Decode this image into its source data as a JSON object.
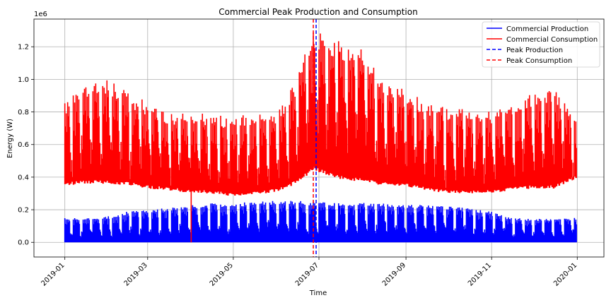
{
  "chart_data": {
    "type": "line",
    "title": "Commercial Peak Production and Consumption",
    "xlabel": "Time",
    "ylabel": "Energy (W)",
    "y_offset_label": "1e6",
    "x_range": [
      "2018-12-10",
      "2020-01-20"
    ],
    "ylim": [
      -90000,
      1370000
    ],
    "grid": true,
    "legend_placement": "top-right",
    "x_ticks": [
      {
        "date": "2019-01-01",
        "label": "2019-01"
      },
      {
        "date": "2019-03-01",
        "label": "2019-03"
      },
      {
        "date": "2019-05-01",
        "label": "2019-05"
      },
      {
        "date": "2019-07-01",
        "label": "2019-07"
      },
      {
        "date": "2019-09-01",
        "label": "2019-09"
      },
      {
        "date": "2019-11-01",
        "label": "2019-11"
      },
      {
        "date": "2020-01-01",
        "label": "2020-01"
      }
    ],
    "y_ticks": [
      {
        "value": 0,
        "label": "0.0"
      },
      {
        "value": 200000,
        "label": "0.2"
      },
      {
        "value": 400000,
        "label": "0.4"
      },
      {
        "value": 600000,
        "label": "0.6"
      },
      {
        "value": 800000,
        "label": "0.8"
      },
      {
        "value": 1000000,
        "label": "1.0"
      },
      {
        "value": 1200000,
        "label": "1.2"
      }
    ],
    "series": [
      {
        "name": "Commercial Production",
        "color": "#0000ff",
        "style": "solid",
        "dates": [
          "2019-01-01",
          "2019-01-15",
          "2019-02-01",
          "2019-02-15",
          "2019-03-01",
          "2019-03-15",
          "2019-04-01",
          "2019-04-15",
          "2019-05-01",
          "2019-05-15",
          "2019-06-01",
          "2019-06-15",
          "2019-07-01",
          "2019-07-15",
          "2019-08-01",
          "2019-08-15",
          "2019-09-01",
          "2019-09-15",
          "2019-10-01",
          "2019-10-15",
          "2019-11-01",
          "2019-11-15",
          "2019-12-01",
          "2019-12-15",
          "2019-12-31"
        ],
        "base": [
          0,
          0,
          0,
          0,
          0,
          0,
          0,
          0,
          0,
          0,
          0,
          0,
          0,
          0,
          0,
          0,
          0,
          0,
          0,
          0,
          0,
          0,
          0,
          0,
          0
        ],
        "peak": [
          150000,
          150000,
          160000,
          190000,
          200000,
          210000,
          230000,
          240000,
          240000,
          250000,
          255000,
          255000,
          250000,
          245000,
          245000,
          240000,
          235000,
          230000,
          220000,
          210000,
          190000,
          150000,
          145000,
          145000,
          150000
        ]
      },
      {
        "name": "Commercial Consumption",
        "color": "#ff0000",
        "style": "solid",
        "dates": [
          "2019-01-01",
          "2019-01-15",
          "2019-02-01",
          "2019-02-15",
          "2019-03-01",
          "2019-03-15",
          "2019-04-01",
          "2019-04-15",
          "2019-05-01",
          "2019-05-15",
          "2019-06-01",
          "2019-06-15",
          "2019-06-27",
          "2019-07-15",
          "2019-08-01",
          "2019-08-15",
          "2019-09-01",
          "2019-09-15",
          "2019-10-01",
          "2019-10-15",
          "2019-11-01",
          "2019-11-15",
          "2019-12-01",
          "2019-12-15",
          "2019-12-31"
        ],
        "base": [
          360000,
          370000,
          370000,
          360000,
          340000,
          330000,
          310000,
          310000,
          290000,
          300000,
          320000,
          370000,
          450000,
          400000,
          380000,
          360000,
          350000,
          330000,
          310000,
          310000,
          310000,
          330000,
          340000,
          340000,
          400000
        ],
        "peak": [
          860000,
          980000,
          1000000,
          920000,
          860000,
          800000,
          790000,
          800000,
          760000,
          800000,
          790000,
          1000000,
          1310000,
          1250000,
          1200000,
          1000000,
          950000,
          850000,
          830000,
          830000,
          800000,
          860000,
          930000,
          960000,
          750000
        ]
      }
    ],
    "spikes": [
      {
        "series": "Commercial Consumption",
        "date": "2019-04-01",
        "value": 0
      }
    ],
    "peak_lines": [
      {
        "name": "Peak Production",
        "date": "2019-06-29",
        "color": "#0000ff",
        "style": "dashed"
      },
      {
        "name": "Peak Consumption",
        "date": "2019-06-27",
        "color": "#ff0000",
        "style": "dashed"
      }
    ]
  }
}
